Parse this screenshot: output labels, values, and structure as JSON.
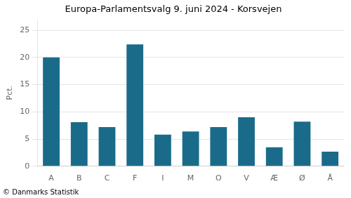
{
  "chart_data": {
    "type": "bar",
    "title": "Europa-Parlamentsvalg 9. juni 2024 - Korsvejen",
    "categories": [
      "A",
      "B",
      "C",
      "F",
      "I",
      "M",
      "O",
      "V",
      "Æ",
      "Ø",
      "Å"
    ],
    "values": [
      20.0,
      8.1,
      7.2,
      22.4,
      5.8,
      6.4,
      7.2,
      9.0,
      3.5,
      8.2,
      2.7
    ],
    "color": "#1a6b8a",
    "ylabel": "Pct.",
    "footer": "© Danmarks Statistik",
    "ylim": [
      0,
      27
    ],
    "yticks": [
      0,
      5,
      10,
      15,
      20,
      25
    ],
    "grid": true
  }
}
